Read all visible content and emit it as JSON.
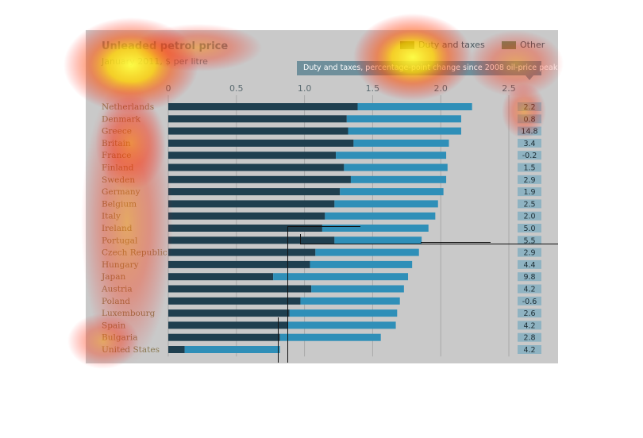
{
  "chart_data": {
    "type": "bar",
    "title": "Unleaded petrol price",
    "subtitle": "January 2011, $ per litre",
    "legend": [
      {
        "label": "Duty and taxes",
        "color": "#1f3f4f"
      },
      {
        "label": "Other",
        "color": "#2f8fb8"
      }
    ],
    "xlim": [
      0,
      2.5
    ],
    "xticks": [
      "0",
      "0.5",
      "1.0",
      "1.5",
      "2.0",
      "2.5"
    ],
    "grid": true,
    "categories": [
      "Netherlands",
      "Denmark",
      "Greece",
      "Britain",
      "France",
      "Finland",
      "Sweden",
      "Germany",
      "Belgium",
      "Italy",
      "Ireland",
      "Portugal",
      "Czech Republic",
      "Hungary",
      "Japan",
      "Austria",
      "Poland",
      "Luxembourg",
      "Spain",
      "Bulgaria",
      "United States"
    ],
    "series": [
      {
        "name": "Duty and taxes",
        "values": [
          1.39,
          1.31,
          1.32,
          1.36,
          1.23,
          1.29,
          1.34,
          1.26,
          1.22,
          1.15,
          1.13,
          1.22,
          1.08,
          1.04,
          0.77,
          1.05,
          0.97,
          0.89,
          0.88,
          0.82,
          0.12
        ]
      },
      {
        "name": "Other",
        "values": [
          0.84,
          0.84,
          0.83,
          0.7,
          0.81,
          0.76,
          0.7,
          0.76,
          0.76,
          0.81,
          0.78,
          0.64,
          0.76,
          0.75,
          0.99,
          0.68,
          0.73,
          0.79,
          0.79,
          0.74,
          0.7
        ]
      }
    ],
    "side_column": {
      "header": "Duty and taxes, percentage-point change since 2008 oil-price peak",
      "values": [
        "2.2",
        "0.8",
        "14.8",
        "3.4",
        "-0.2",
        "1.5",
        "2.9",
        "1.9",
        "2.5",
        "2.0",
        "5.0",
        "5.5",
        "2.9",
        "4.4",
        "9.8",
        "4.2",
        "-0.6",
        "2.6",
        "4.2",
        "2.8",
        "4.2"
      ]
    }
  }
}
